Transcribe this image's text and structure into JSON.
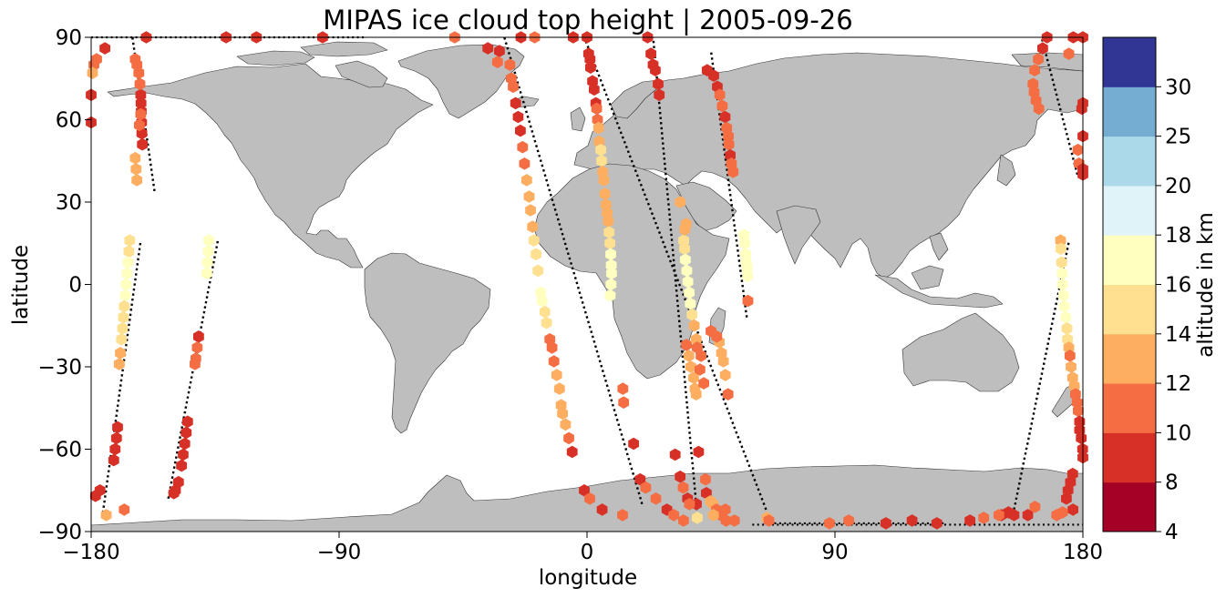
{
  "title": "MIPAS ice cloud top height | 2005-09-26",
  "map": {
    "xlabel": "longitude",
    "ylabel": "latitude",
    "xlim": [
      -180,
      180
    ],
    "ylim": [
      -90,
      90
    ],
    "xticks": [
      -180,
      -90,
      0,
      90,
      180
    ],
    "xtick_labels": [
      "−180",
      "−90",
      "0",
      "90",
      "180"
    ],
    "yticks": [
      -90,
      -60,
      -30,
      0,
      30,
      60,
      90
    ],
    "ytick_labels": [
      "−90",
      "−60",
      "−30",
      "0",
      "30",
      "60",
      "90"
    ],
    "land_color": "#bebebe",
    "ocean_color": "#ffffff"
  },
  "colorbar": {
    "label": "altitude in km",
    "boundaries": [
      4,
      8,
      10,
      12,
      14,
      16,
      18,
      20,
      25,
      30
    ],
    "tick_labels": [
      "4",
      "8",
      "10",
      "12",
      "14",
      "16",
      "18",
      "20",
      "25",
      "30"
    ],
    "colors": [
      "#a50026",
      "#d73027",
      "#f46d43",
      "#fdae61",
      "#fee090",
      "#ffffbf",
      "#e0f3f8",
      "#abd9e9",
      "#74add1",
      "#313695"
    ]
  },
  "chart_data": {
    "type": "scatter",
    "title": "MIPAS ice cloud top height | 2005-09-26",
    "xlabel": "longitude",
    "ylabel": "latitude",
    "xlim": [
      -180,
      180
    ],
    "ylim": [
      -90,
      90
    ],
    "colorbar_label": "altitude in km",
    "tracks": [
      {
        "id": "A",
        "lat_start": 34,
        "lat_end": 90,
        "lon_start": -157,
        "lon_end": -165
      },
      {
        "id": "B",
        "lat_start": -85,
        "lat_end": 16,
        "lon_start": -176,
        "lon_end": -162
      },
      {
        "id": "C",
        "lat_start": -78,
        "lat_end": 16,
        "lon_start": -152,
        "lon_end": -134
      },
      {
        "id": "D",
        "lat_start": -80,
        "lat_end": 90,
        "lon_start": 20,
        "lon_end": -30
      },
      {
        "id": "E",
        "lat_start": -82,
        "lat_end": 90,
        "lon_start": 65,
        "lon_end": -1
      },
      {
        "id": "F",
        "lat_start": -84,
        "lat_end": 90,
        "lon_start": 40,
        "lon_end": 24
      },
      {
        "id": "G",
        "lat_start": -12,
        "lat_end": 85,
        "lon_start": 58,
        "lon_end": 45
      },
      {
        "id": "H",
        "lat_start": -82,
        "lat_end": 16,
        "lon_start": 155,
        "lon_end": 175
      },
      {
        "id": "I",
        "lat_start": 40,
        "lat_end": 90,
        "lon_start": 178,
        "lon_end": 165
      }
    ],
    "points": [
      [
        -161.4,
        51,
        9
      ],
      [
        -161.6,
        55,
        9
      ],
      [
        -161.7,
        59,
        9
      ],
      [
        -161.8,
        63,
        9
      ],
      [
        -161.9,
        66,
        9
      ],
      [
        -162,
        69,
        9
      ],
      [
        -162.3,
        73,
        11
      ],
      [
        -162.7,
        77,
        11
      ],
      [
        -163.4,
        80,
        11
      ],
      [
        -164,
        82,
        11
      ],
      [
        -162,
        62,
        11
      ],
      [
        -162.5,
        58,
        11
      ],
      [
        -164,
        46,
        13
      ],
      [
        -163.7,
        42,
        13
      ],
      [
        -163.4,
        38,
        13
      ],
      [
        -160,
        90,
        9
      ],
      [
        -131,
        90,
        9
      ],
      [
        -120,
        90,
        9
      ],
      [
        -96,
        90,
        9
      ],
      [
        -178,
        82,
        11
      ],
      [
        -179,
        80,
        11
      ],
      [
        -179.5,
        77,
        13
      ],
      [
        -180,
        69,
        9
      ],
      [
        -180,
        59,
        9
      ],
      [
        -175,
        86,
        9
      ],
      [
        -166,
        16,
        15
      ],
      [
        -166.3,
        12,
        15
      ],
      [
        -166.6,
        8,
        17
      ],
      [
        -167,
        4,
        17
      ],
      [
        -167.3,
        0,
        17
      ],
      [
        -167.6,
        -4,
        17
      ],
      [
        -168,
        -8,
        15
      ],
      [
        -168.3,
        -12,
        15
      ],
      [
        -168.6,
        -16,
        15
      ],
      [
        -169,
        -20,
        15
      ],
      [
        -169.4,
        -25,
        13
      ],
      [
        -169.8,
        -29,
        13
      ],
      [
        -170.4,
        -52,
        9
      ],
      [
        -170.8,
        -56,
        9
      ],
      [
        -171.3,
        -60,
        9
      ],
      [
        -171.8,
        -64,
        9
      ],
      [
        -176.8,
        -75,
        9
      ],
      [
        -178.4,
        -77,
        9
      ],
      [
        -174.5,
        -84,
        13
      ],
      [
        -168,
        -82,
        11
      ],
      [
        -137.3,
        16,
        17
      ],
      [
        -137.5,
        12,
        17
      ],
      [
        -137.8,
        8,
        17
      ],
      [
        -138,
        4,
        17
      ],
      [
        -141,
        -19,
        9
      ],
      [
        -141.5,
        -23,
        11
      ],
      [
        -142,
        -27,
        11
      ],
      [
        -142.3,
        -29,
        11
      ],
      [
        -145,
        -50,
        9
      ],
      [
        -145.5,
        -54,
        9
      ],
      [
        -146,
        -58,
        9
      ],
      [
        -146.6,
        -62,
        9
      ],
      [
        -147.2,
        -66,
        9
      ],
      [
        -148.3,
        -72,
        9
      ],
      [
        -149.4,
        -75,
        9
      ],
      [
        -150,
        -76,
        9
      ],
      [
        -31.8,
        85,
        9
      ],
      [
        -32.5,
        81,
        11
      ],
      [
        -28,
        80,
        11
      ],
      [
        -27.5,
        75,
        11
      ],
      [
        -26.8,
        72,
        11
      ],
      [
        -25.9,
        66,
        9
      ],
      [
        -25,
        61,
        9
      ],
      [
        -24.2,
        56,
        9
      ],
      [
        -23.4,
        50,
        11
      ],
      [
        -22.7,
        44,
        11
      ],
      [
        -21.9,
        38,
        13
      ],
      [
        -21,
        32,
        13
      ],
      [
        -20.5,
        27,
        13
      ],
      [
        -19.8,
        21,
        13
      ],
      [
        -19.3,
        16,
        15
      ],
      [
        -18.5,
        11,
        15
      ],
      [
        -17.8,
        5,
        15
      ],
      [
        -16.8,
        -3,
        17
      ],
      [
        -16.3,
        -6,
        17
      ],
      [
        -15.3,
        -10,
        15
      ],
      [
        -14.7,
        -14,
        15
      ],
      [
        -13.5,
        -20,
        11
      ],
      [
        -12.7,
        -23,
        11
      ],
      [
        -12,
        -28,
        11
      ],
      [
        -11,
        -33,
        13
      ],
      [
        -10,
        -38,
        13
      ],
      [
        -9.4,
        -44,
        13
      ],
      [
        -8.9,
        -47,
        13
      ],
      [
        -7.8,
        -51,
        13
      ],
      [
        -6.6,
        -56,
        11
      ],
      [
        -5.4,
        -61,
        9
      ],
      [
        -1,
        -75,
        9
      ],
      [
        1,
        -78,
        11
      ],
      [
        5.5,
        -82,
        9
      ],
      [
        12.9,
        -84,
        11
      ],
      [
        -19,
        90,
        11
      ],
      [
        -24,
        90,
        9
      ],
      [
        -48,
        90,
        11
      ],
      [
        -36,
        86,
        9
      ],
      [
        0.6,
        84,
        9
      ],
      [
        1.1,
        82,
        9
      ],
      [
        1.3,
        79,
        9
      ],
      [
        2,
        74,
        9
      ],
      [
        2.6,
        71,
        9
      ],
      [
        3.2,
        66,
        9
      ],
      [
        3.5,
        64,
        11
      ],
      [
        3.8,
        60,
        11
      ],
      [
        4.2,
        57,
        13
      ],
      [
        4.4,
        52,
        13
      ],
      [
        5,
        49,
        15
      ],
      [
        5.3,
        45,
        15
      ],
      [
        5.7,
        41,
        13
      ],
      [
        6.1,
        38,
        13
      ],
      [
        6.5,
        33,
        13
      ],
      [
        6.9,
        29,
        13
      ],
      [
        7.3,
        26,
        13
      ],
      [
        7.7,
        23,
        13
      ],
      [
        8,
        19,
        15
      ],
      [
        8.3,
        15,
        15
      ],
      [
        8.6,
        11,
        17
      ],
      [
        8.8,
        7,
        17
      ],
      [
        8.9,
        4,
        17
      ],
      [
        8.7,
        0,
        17
      ],
      [
        8.4,
        -4,
        17
      ],
      [
        13,
        -38,
        11
      ],
      [
        13.3,
        -43,
        11
      ],
      [
        16.9,
        -58,
        9
      ],
      [
        19.3,
        -71,
        9
      ],
      [
        21.3,
        -74,
        11
      ],
      [
        25,
        -78,
        11
      ],
      [
        29,
        -82,
        9
      ],
      [
        31.5,
        -84,
        11
      ],
      [
        35,
        -86,
        11
      ],
      [
        40,
        -85,
        15
      ],
      [
        0,
        90,
        9
      ],
      [
        -5,
        90,
        9
      ],
      [
        23.2,
        84,
        9
      ],
      [
        24,
        80,
        9
      ],
      [
        24.8,
        78,
        9
      ],
      [
        25.8,
        73,
        9
      ],
      [
        26.2,
        69,
        9
      ],
      [
        22,
        90,
        9
      ],
      [
        35.1,
        16,
        15
      ],
      [
        35.4,
        13,
        15
      ],
      [
        35.7,
        9,
        17
      ],
      [
        36.2,
        5,
        17
      ],
      [
        36.6,
        1,
        17
      ],
      [
        37.1,
        -3,
        17
      ],
      [
        37.5,
        -7,
        17
      ],
      [
        38.1,
        -11,
        15
      ],
      [
        36.1,
        -22,
        11
      ],
      [
        37,
        -26,
        13
      ],
      [
        37.7,
        -30,
        13
      ],
      [
        38.7,
        -34,
        13
      ],
      [
        39.2,
        -38,
        13
      ],
      [
        39.6,
        -40,
        13
      ],
      [
        40.5,
        -61,
        9
      ],
      [
        43.3,
        -76,
        9
      ],
      [
        44.8,
        -79,
        13
      ],
      [
        45.8,
        -80,
        13
      ],
      [
        47,
        -82,
        11
      ],
      [
        50.5,
        -86,
        11
      ],
      [
        48.6,
        -84,
        11
      ],
      [
        45.9,
        -84,
        13
      ],
      [
        53.5,
        -86,
        11
      ],
      [
        65.3,
        -85,
        13
      ],
      [
        66,
        -86,
        11
      ],
      [
        88,
        -87,
        11
      ],
      [
        95,
        -86,
        11
      ],
      [
        108.5,
        -87,
        9
      ],
      [
        118,
        -86,
        9
      ],
      [
        127,
        -87,
        9
      ],
      [
        139,
        -86,
        9
      ],
      [
        144,
        -85,
        11
      ],
      [
        150.5,
        -84,
        9
      ],
      [
        155,
        -84,
        9
      ],
      [
        170.5,
        -84,
        11
      ],
      [
        176.4,
        -82,
        9
      ],
      [
        162.6,
        -81,
        11
      ],
      [
        35.5,
        20,
        13
      ],
      [
        33.8,
        30,
        13
      ],
      [
        36,
        22,
        13
      ],
      [
        38.9,
        -15,
        13
      ],
      [
        39.6,
        -20,
        13
      ],
      [
        40,
        -23,
        11
      ],
      [
        41,
        -31,
        11
      ],
      [
        50.2,
        -82,
        11
      ],
      [
        43,
        -71,
        11
      ],
      [
        39.7,
        -80,
        9
      ],
      [
        32,
        -62,
        9
      ],
      [
        33.8,
        -70,
        9
      ],
      [
        34.9,
        -74,
        11
      ],
      [
        36.5,
        -78,
        9
      ],
      [
        37.2,
        -80,
        11
      ],
      [
        43.6,
        78,
        9
      ],
      [
        46,
        76,
        9
      ],
      [
        47.3,
        72,
        9
      ],
      [
        48.2,
        69,
        11
      ],
      [
        49.1,
        65,
        11
      ],
      [
        50.1,
        61,
        9
      ],
      [
        50.7,
        57,
        11
      ],
      [
        51.3,
        54,
        11
      ],
      [
        51.5,
        51,
        11
      ],
      [
        52,
        47,
        9
      ],
      [
        52.4,
        44,
        11
      ],
      [
        53,
        41,
        11
      ],
      [
        57,
        18,
        17
      ],
      [
        57.3,
        15,
        17
      ],
      [
        57.6,
        11,
        17
      ],
      [
        57.8,
        8,
        17
      ],
      [
        58.1,
        6,
        17
      ],
      [
        58.3,
        3,
        17
      ],
      [
        58.4,
        -6,
        11
      ],
      [
        51.2,
        -40,
        11
      ],
      [
        50.2,
        -33,
        13
      ],
      [
        49.5,
        -28,
        13
      ],
      [
        48.8,
        -25,
        13
      ],
      [
        48,
        -21,
        13
      ],
      [
        47.1,
        -19,
        11
      ],
      [
        45,
        -17,
        11
      ],
      [
        41.4,
        -26,
        11
      ],
      [
        42.4,
        -36,
        11
      ],
      [
        171.9,
        16,
        13
      ],
      [
        172,
        13,
        15
      ],
      [
        172.3,
        8,
        15
      ],
      [
        172.5,
        4,
        17
      ],
      [
        172.6,
        0,
        17
      ],
      [
        173,
        -4,
        17
      ],
      [
        173.2,
        -8,
        17
      ],
      [
        173.8,
        -12,
        17
      ],
      [
        174.2,
        -16,
        15
      ],
      [
        174.4,
        -20,
        15
      ],
      [
        174.9,
        -23,
        13
      ],
      [
        175.3,
        -26,
        11
      ],
      [
        175.7,
        -30,
        13
      ],
      [
        176.3,
        -34,
        13
      ],
      [
        176.9,
        -37,
        13
      ],
      [
        177.3,
        -40,
        11
      ],
      [
        177.9,
        -43,
        11
      ],
      [
        178.3,
        -46,
        11
      ],
      [
        178.8,
        -50,
        9
      ],
      [
        178.8,
        -53,
        9
      ],
      [
        179.4,
        -56,
        9
      ],
      [
        179.9,
        -60,
        9
      ],
      [
        180,
        -63,
        9
      ],
      [
        176.3,
        -69,
        9
      ],
      [
        175.5,
        -72,
        9
      ],
      [
        174.6,
        -75,
        9
      ],
      [
        174,
        -78,
        9
      ],
      [
        172.6,
        -83,
        11
      ],
      [
        160,
        -84,
        9
      ],
      [
        153,
        -83,
        9
      ],
      [
        149.5,
        -84,
        11
      ],
      [
        161.9,
        73,
        11
      ],
      [
        162.3,
        70,
        11
      ],
      [
        163,
        67,
        11
      ],
      [
        164,
        64,
        11
      ],
      [
        162.5,
        78,
        11
      ],
      [
        163.8,
        82,
        11
      ],
      [
        165.4,
        86,
        9
      ],
      [
        167,
        90,
        9
      ],
      [
        178.2,
        49,
        11
      ],
      [
        178.6,
        44,
        11
      ],
      [
        180,
        42,
        9
      ],
      [
        181,
        40,
        9
      ],
      [
        180,
        54,
        9
      ],
      [
        179.6,
        64,
        9
      ],
      [
        180,
        66,
        9
      ],
      [
        180,
        90,
        9
      ],
      [
        176.5,
        90,
        9
      ],
      [
        174.9,
        84,
        11
      ]
    ]
  }
}
